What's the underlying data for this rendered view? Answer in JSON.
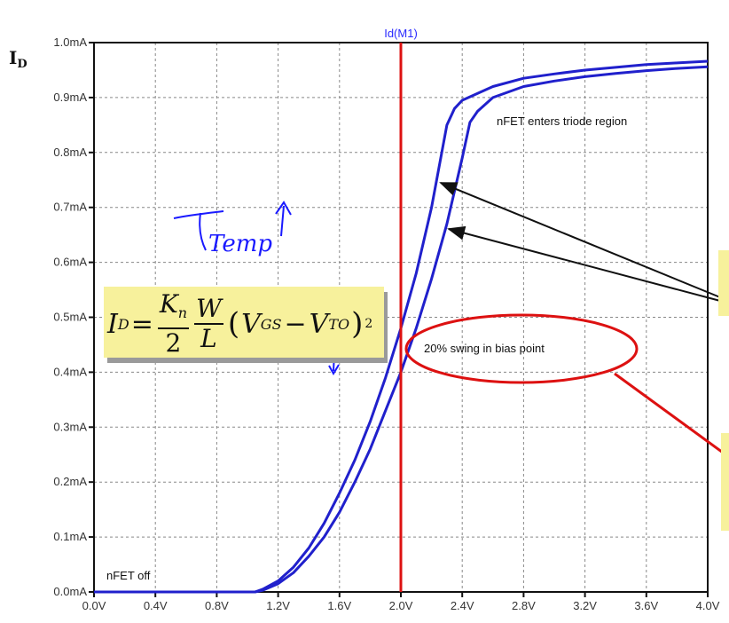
{
  "chart_data": {
    "type": "line",
    "title": "Id(M1)",
    "ylabel": "ID",
    "xlim": [
      0,
      4
    ],
    "ylim": [
      0,
      1
    ],
    "x_ticks": [
      "0.0V",
      "0.4V",
      "0.8V",
      "1.2V",
      "1.6V",
      "2.0V",
      "2.4V",
      "2.8V",
      "3.2V",
      "3.6V",
      "4.0V"
    ],
    "y_ticks": [
      "0.0mA",
      "0.1mA",
      "0.2mA",
      "0.3mA",
      "0.4mA",
      "0.5mA",
      "0.6mA",
      "0.7mA",
      "0.8mA",
      "0.9mA",
      "1.0mA"
    ],
    "grid": true,
    "series": [
      {
        "color": "#2020cc",
        "x": [
          0.0,
          1.05,
          1.1,
          1.2,
          1.3,
          1.4,
          1.5,
          1.6,
          1.7,
          1.8,
          1.9,
          2.0,
          2.1,
          2.2,
          2.3,
          2.35,
          2.4,
          2.6,
          2.8,
          3.0,
          3.2,
          3.4,
          3.6,
          3.8,
          4.0
        ],
        "y": [
          0.0,
          0.0,
          0.005,
          0.02,
          0.045,
          0.08,
          0.125,
          0.18,
          0.24,
          0.31,
          0.39,
          0.48,
          0.58,
          0.7,
          0.85,
          0.88,
          0.895,
          0.92,
          0.935,
          0.943,
          0.95,
          0.955,
          0.96,
          0.963,
          0.966
        ]
      },
      {
        "color": "#2020cc",
        "x": [
          0.0,
          1.05,
          1.1,
          1.2,
          1.3,
          1.4,
          1.5,
          1.6,
          1.7,
          1.8,
          1.9,
          2.0,
          2.1,
          2.2,
          2.3,
          2.4,
          2.45,
          2.5,
          2.6,
          2.8,
          3.0,
          3.2,
          3.4,
          3.6,
          3.8,
          4.0
        ],
        "y": [
          0.0,
          0.0,
          0.003,
          0.015,
          0.035,
          0.065,
          0.1,
          0.145,
          0.2,
          0.26,
          0.33,
          0.4,
          0.48,
          0.57,
          0.67,
          0.79,
          0.855,
          0.875,
          0.9,
          0.92,
          0.93,
          0.938,
          0.944,
          0.949,
          0.953,
          0.956
        ]
      }
    ],
    "vline": {
      "x": 2.0,
      "color": "#dd1111"
    },
    "annotations": {
      "triode": "nFET enters triode region",
      "off": "nFET off",
      "swing": "20% swing in bias point",
      "handwriting": "Temp"
    },
    "equation": {
      "lhs": "I",
      "lhs_sub": "D",
      "eq": "=",
      "k_num": "K",
      "k_num_sub": "n",
      "k_den": "2",
      "w_num": "W",
      "w_den": "L",
      "v1": "V",
      "v1_sub": "GS",
      "minus": "−",
      "v2": "V",
      "v2_sub": "TO",
      "exp": "2"
    }
  }
}
